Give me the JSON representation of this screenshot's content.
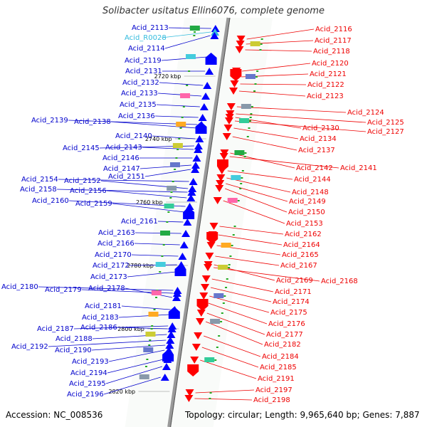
{
  "title": "Solibacter usitatus Ellin6076, complete genome",
  "accession_text": "Accession: NC_008536",
  "topology_text": "Topology: circular; Length: 9,965,640 bp; Genes: 7,887",
  "colors": {
    "left_label": "#0000cc",
    "right_label": "#ee0000",
    "rna_label": "#33bbdd",
    "left_gene": "#0000ff",
    "right_gene": "#ff0000",
    "backbone": "#999999"
  },
  "left_labels": [
    {
      "text": "Acid_2113",
      "type": "cds"
    },
    {
      "text": "Acid_R0028",
      "type": "rna"
    },
    {
      "text": "Acid_2114",
      "type": "cds"
    },
    {
      "text": "Acid_2119",
      "type": "cds"
    },
    {
      "text": "Acid_2131",
      "type": "cds"
    },
    {
      "text": "Acid_2132",
      "type": "cds"
    },
    {
      "text": "Acid_2133",
      "type": "cds"
    },
    {
      "text": "Acid_2135",
      "type": "cds"
    },
    {
      "text": "Acid_2136",
      "type": "cds"
    },
    {
      "text": "Acid_2139",
      "type": "cds"
    },
    {
      "text": "Acid_2138",
      "type": "cds"
    },
    {
      "text": "Acid_2140",
      "type": "cds"
    },
    {
      "text": "Acid_2145",
      "type": "cds"
    },
    {
      "text": "Acid_2143",
      "type": "cds"
    },
    {
      "text": "Acid_2146",
      "type": "cds"
    },
    {
      "text": "Acid_2147",
      "type": "cds"
    },
    {
      "text": "Acid_2151",
      "type": "cds"
    },
    {
      "text": "Acid_2154",
      "type": "cds"
    },
    {
      "text": "Acid_2152",
      "type": "cds"
    },
    {
      "text": "Acid_2158",
      "type": "cds"
    },
    {
      "text": "Acid_2156",
      "type": "cds"
    },
    {
      "text": "Acid_2160",
      "type": "cds"
    },
    {
      "text": "Acid_2159",
      "type": "cds"
    },
    {
      "text": "Acid_2161",
      "type": "cds"
    },
    {
      "text": "Acid_2163",
      "type": "cds"
    },
    {
      "text": "Acid_2166",
      "type": "cds"
    },
    {
      "text": "Acid_2170",
      "type": "cds"
    },
    {
      "text": "Acid_2172",
      "type": "cds"
    },
    {
      "text": "Acid_2173",
      "type": "cds"
    },
    {
      "text": "Acid_2180",
      "type": "cds"
    },
    {
      "text": "Acid_2179",
      "type": "cds"
    },
    {
      "text": "Acid_2178",
      "type": "cds"
    },
    {
      "text": "Acid_2181",
      "type": "cds"
    },
    {
      "text": "Acid_2183",
      "type": "cds"
    },
    {
      "text": "Acid_2187",
      "type": "cds"
    },
    {
      "text": "Acid_2186",
      "type": "cds"
    },
    {
      "text": "Acid_2188",
      "type": "cds"
    },
    {
      "text": "Acid_2192",
      "type": "cds"
    },
    {
      "text": "Acid_2190",
      "type": "cds"
    },
    {
      "text": "Acid_2193",
      "type": "cds"
    },
    {
      "text": "Acid_2194",
      "type": "cds"
    },
    {
      "text": "Acid_2195",
      "type": "cds"
    },
    {
      "text": "Acid_2196",
      "type": "cds"
    }
  ],
  "right_labels": [
    "Acid_2116",
    "Acid_2117",
    "Acid_2118",
    "Acid_2120",
    "Acid_2121",
    "Acid_2122",
    "Acid_2123",
    "Acid_2124",
    "Acid_2125",
    "Acid_2130",
    "Acid_2127",
    "Acid_2134",
    "Acid_2137",
    "Acid_2142",
    "Acid_2141",
    "Acid_2144",
    "Acid_2148",
    "Acid_2149",
    "Acid_2150",
    "Acid_2153",
    "Acid_2162",
    "Acid_2164",
    "Acid_2165",
    "Acid_2167",
    "Acid_2169",
    "Acid_2168",
    "Acid_2171",
    "Acid_2174",
    "Acid_2175",
    "Acid_2176",
    "Acid_2177",
    "Acid_2182",
    "Acid_2184",
    "Acid_2185",
    "Acid_2191",
    "Acid_2197",
    "Acid_2198"
  ],
  "scale_labels": [
    "2720 kbp",
    "2740 kbp",
    "2760 kbp",
    "2780 kbp",
    "2800 kbp",
    "2820 kbp"
  ]
}
